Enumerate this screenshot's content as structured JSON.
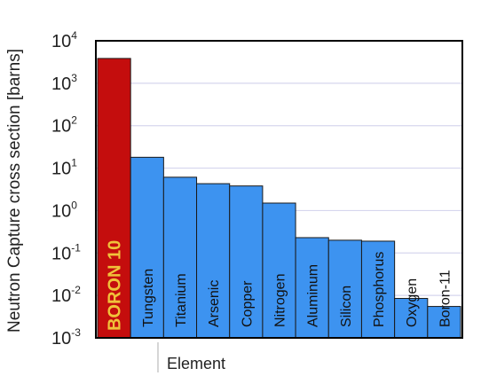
{
  "chart_data": {
    "type": "bar",
    "title": "",
    "xlabel": "Element",
    "ylabel": "Neutron Capture cross section [barns]",
    "y_scale": "log",
    "ylim": [
      0.001,
      10000
    ],
    "y_ticks": [
      {
        "value": 0.001,
        "base": "10",
        "exp": "-3"
      },
      {
        "value": 0.01,
        "base": "10",
        "exp": "-2"
      },
      {
        "value": 0.1,
        "base": "10",
        "exp": "-1"
      },
      {
        "value": 1,
        "base": "10",
        "exp": "0"
      },
      {
        "value": 10,
        "base": "10",
        "exp": "1"
      },
      {
        "value": 100,
        "base": "10",
        "exp": "2"
      },
      {
        "value": 1000,
        "base": "10",
        "exp": "3"
      },
      {
        "value": 10000,
        "base": "10",
        "exp": "4"
      }
    ],
    "grid": "horizontal",
    "categories": [
      "BORON 10",
      "Tungsten",
      "Titanium",
      "Arsenic",
      "Copper",
      "Nitrogen",
      "Aluminum",
      "Silicon",
      "Phosphorus",
      "Oxygen",
      "Boron-11"
    ],
    "values": [
      3840,
      18,
      6.1,
      4.3,
      3.8,
      1.5,
      0.23,
      0.2,
      0.19,
      0.0085,
      0.0055
    ],
    "colors": {
      "highlight_bar": "#c40d0d",
      "highlight_label": "#f0c23a",
      "bar": "#3d93f0",
      "bar_edge": "#1a1a1a",
      "gridline": "#d6d6ee",
      "frame": "#000000"
    }
  }
}
